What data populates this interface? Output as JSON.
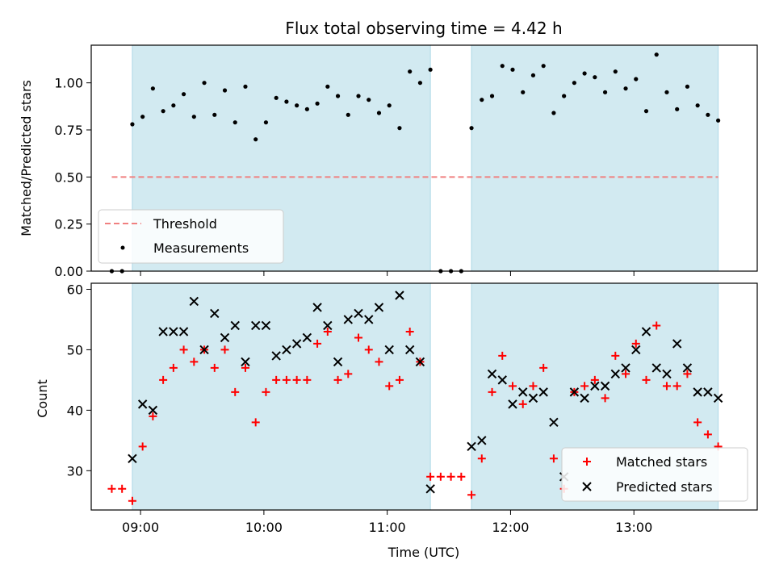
{
  "chart_data": [
    {
      "type": "scatter",
      "title": "Flux total observing time = 4.42 h",
      "xlabel": "",
      "ylabel": "Matched/Predicted stars",
      "xlim": [
        "08:36",
        "14:00"
      ],
      "ylim": [
        0,
        1.2
      ],
      "yticks": [
        "0.00",
        "0.25",
        "0.50",
        "0.75",
        "1.00"
      ],
      "grid": false,
      "legend_position": "lower-left",
      "shaded_intervals": [
        [
          "08:56",
          "11:21"
        ],
        [
          "11:41",
          "13:41"
        ]
      ],
      "shade_color": "#add8e6",
      "threshold": {
        "name": "Threshold",
        "value": 0.5,
        "x_range": [
          "08:46",
          "13:41"
        ],
        "color": "#f08080"
      },
      "series": [
        {
          "name": "Measurements",
          "color": "#000000",
          "points": [
            [
              "08:46",
              0.0
            ],
            [
              "08:51",
              0.0
            ],
            [
              "08:56",
              0.78
            ],
            [
              "09:01",
              0.82
            ],
            [
              "09:06",
              0.97
            ],
            [
              "09:11",
              0.85
            ],
            [
              "09:16",
              0.88
            ],
            [
              "09:21",
              0.94
            ],
            [
              "09:26",
              0.82
            ],
            [
              "09:31",
              1.0
            ],
            [
              "09:36",
              0.83
            ],
            [
              "09:41",
              0.96
            ],
            [
              "09:46",
              0.79
            ],
            [
              "09:51",
              0.98
            ],
            [
              "09:56",
              0.7
            ],
            [
              "10:01",
              0.79
            ],
            [
              "10:06",
              0.92
            ],
            [
              "10:11",
              0.9
            ],
            [
              "10:16",
              0.88
            ],
            [
              "10:21",
              0.86
            ],
            [
              "10:26",
              0.89
            ],
            [
              "10:31",
              0.98
            ],
            [
              "10:36",
              0.93
            ],
            [
              "10:41",
              0.83
            ],
            [
              "10:46",
              0.93
            ],
            [
              "10:51",
              0.91
            ],
            [
              "10:56",
              0.84
            ],
            [
              "11:01",
              0.88
            ],
            [
              "11:06",
              0.76
            ],
            [
              "11:11",
              1.06
            ],
            [
              "11:16",
              1.0
            ],
            [
              "11:21",
              1.07
            ],
            [
              "11:26",
              0.0
            ],
            [
              "11:31",
              0.0
            ],
            [
              "11:36",
              0.0
            ],
            [
              "11:41",
              0.76
            ],
            [
              "11:46",
              0.91
            ],
            [
              "11:51",
              0.93
            ],
            [
              "11:56",
              1.09
            ],
            [
              "12:01",
              1.07
            ],
            [
              "12:06",
              0.95
            ],
            [
              "12:11",
              1.04
            ],
            [
              "12:16",
              1.09
            ],
            [
              "12:21",
              0.84
            ],
            [
              "12:26",
              0.93
            ],
            [
              "12:31",
              1.0
            ],
            [
              "12:36",
              1.05
            ],
            [
              "12:41",
              1.03
            ],
            [
              "12:46",
              0.95
            ],
            [
              "12:51",
              1.06
            ],
            [
              "12:56",
              0.97
            ],
            [
              "13:01",
              1.02
            ],
            [
              "13:06",
              0.85
            ],
            [
              "13:11",
              1.15
            ],
            [
              "13:16",
              0.95
            ],
            [
              "13:21",
              0.86
            ],
            [
              "13:26",
              0.98
            ],
            [
              "13:31",
              0.88
            ],
            [
              "13:36",
              0.83
            ],
            [
              "13:41",
              0.8
            ]
          ]
        }
      ]
    },
    {
      "type": "scatter",
      "title": "",
      "xlabel": "Time (UTC)",
      "ylabel": "Count",
      "xlim": [
        "08:36",
        "14:00"
      ],
      "ylim": [
        23.5,
        61
      ],
      "xticks": [
        "09:00",
        "10:00",
        "11:00",
        "12:00",
        "13:00"
      ],
      "yticks": [
        "30",
        "40",
        "50",
        "60"
      ],
      "grid": false,
      "legend_position": "lower-right",
      "shaded_intervals": [
        [
          "08:56",
          "11:21"
        ],
        [
          "11:41",
          "13:41"
        ]
      ],
      "shade_color": "#add8e6",
      "series": [
        {
          "name": "Matched stars",
          "marker": "plus",
          "color": "#ff0000",
          "points": [
            [
              "08:46",
              27
            ],
            [
              "08:51",
              27
            ],
            [
              "08:56",
              25
            ],
            [
              "09:01",
              34
            ],
            [
              "09:06",
              39
            ],
            [
              "09:11",
              45
            ],
            [
              "09:16",
              47
            ],
            [
              "09:21",
              50
            ],
            [
              "09:26",
              48
            ],
            [
              "09:31",
              50
            ],
            [
              "09:36",
              47
            ],
            [
              "09:41",
              50
            ],
            [
              "09:46",
              43
            ],
            [
              "09:51",
              47
            ],
            [
              "09:56",
              38
            ],
            [
              "10:01",
              43
            ],
            [
              "10:06",
              45
            ],
            [
              "10:11",
              45
            ],
            [
              "10:16",
              45
            ],
            [
              "10:21",
              45
            ],
            [
              "10:26",
              51
            ],
            [
              "10:31",
              53
            ],
            [
              "10:36",
              45
            ],
            [
              "10:41",
              46
            ],
            [
              "10:46",
              52
            ],
            [
              "10:51",
              50
            ],
            [
              "10:56",
              48
            ],
            [
              "11:01",
              44
            ],
            [
              "11:06",
              45
            ],
            [
              "11:11",
              53
            ],
            [
              "11:16",
              48
            ],
            [
              "11:21",
              29
            ],
            [
              "11:26",
              29
            ],
            [
              "11:31",
              29
            ],
            [
              "11:36",
              29
            ],
            [
              "11:41",
              26
            ],
            [
              "11:46",
              32
            ],
            [
              "11:51",
              43
            ],
            [
              "11:56",
              49
            ],
            [
              "12:01",
              44
            ],
            [
              "12:06",
              41
            ],
            [
              "12:11",
              44
            ],
            [
              "12:16",
              47
            ],
            [
              "12:21",
              32
            ],
            [
              "12:26",
              27
            ],
            [
              "12:31",
              43
            ],
            [
              "12:36",
              44
            ],
            [
              "12:41",
              45
            ],
            [
              "12:46",
              42
            ],
            [
              "12:51",
              49
            ],
            [
              "12:56",
              46
            ],
            [
              "13:01",
              51
            ],
            [
              "13:06",
              45
            ],
            [
              "13:11",
              54
            ],
            [
              "13:16",
              44
            ],
            [
              "13:21",
              44
            ],
            [
              "13:26",
              46
            ],
            [
              "13:31",
              38
            ],
            [
              "13:36",
              36
            ],
            [
              "13:41",
              34
            ]
          ]
        },
        {
          "name": "Predicted stars",
          "marker": "x",
          "color": "#000000",
          "points": [
            [
              "08:56",
              32
            ],
            [
              "09:01",
              41
            ],
            [
              "09:06",
              40
            ],
            [
              "09:11",
              53
            ],
            [
              "09:16",
              53
            ],
            [
              "09:21",
              53
            ],
            [
              "09:26",
              58
            ],
            [
              "09:31",
              50
            ],
            [
              "09:36",
              56
            ],
            [
              "09:41",
              52
            ],
            [
              "09:46",
              54
            ],
            [
              "09:51",
              48
            ],
            [
              "09:56",
              54
            ],
            [
              "10:01",
              54
            ],
            [
              "10:06",
              49
            ],
            [
              "10:11",
              50
            ],
            [
              "10:16",
              51
            ],
            [
              "10:21",
              52
            ],
            [
              "10:26",
              57
            ],
            [
              "10:31",
              54
            ],
            [
              "10:36",
              48
            ],
            [
              "10:41",
              55
            ],
            [
              "10:46",
              56
            ],
            [
              "10:51",
              55
            ],
            [
              "10:56",
              57
            ],
            [
              "11:01",
              50
            ],
            [
              "11:06",
              59
            ],
            [
              "11:11",
              50
            ],
            [
              "11:16",
              48
            ],
            [
              "11:21",
              27
            ],
            [
              "11:41",
              34
            ],
            [
              "11:46",
              35
            ],
            [
              "11:51",
              46
            ],
            [
              "11:56",
              45
            ],
            [
              "12:01",
              41
            ],
            [
              "12:06",
              43
            ],
            [
              "12:11",
              42
            ],
            [
              "12:16",
              43
            ],
            [
              "12:21",
              38
            ],
            [
              "12:26",
              29
            ],
            [
              "12:31",
              43
            ],
            [
              "12:36",
              42
            ],
            [
              "12:41",
              44
            ],
            [
              "12:46",
              44
            ],
            [
              "12:51",
              46
            ],
            [
              "12:56",
              47
            ],
            [
              "13:01",
              50
            ],
            [
              "13:06",
              53
            ],
            [
              "13:11",
              47
            ],
            [
              "13:16",
              46
            ],
            [
              "13:21",
              51
            ],
            [
              "13:26",
              47
            ],
            [
              "13:31",
              43
            ],
            [
              "13:36",
              43
            ],
            [
              "13:41",
              42
            ]
          ]
        }
      ]
    }
  ]
}
